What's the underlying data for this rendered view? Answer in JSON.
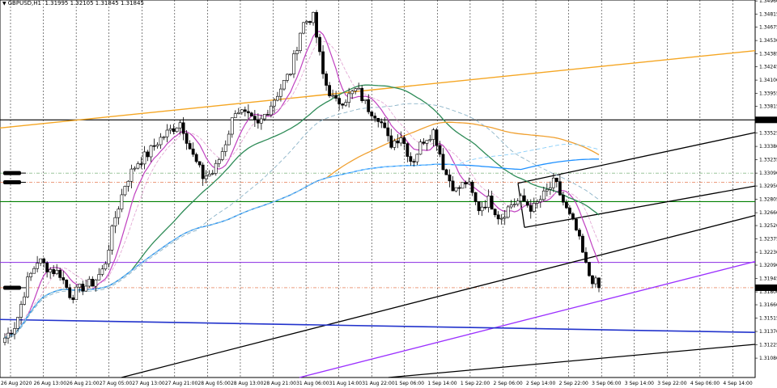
{
  "header": {
    "symbol": "GBPUSD,H1",
    "ohlc": "1.31995 1.32105 1.31845 1.31845"
  },
  "chart_data": {
    "type": "candlestick",
    "symbol": "GBPUSD",
    "timeframe": "H1",
    "ylim": [
      1.3087,
      1.3497
    ],
    "y_ticks": [
      "1.34960",
      "1.34815",
      "1.34675",
      "1.34530",
      "1.34385",
      "1.34245",
      "1.34100",
      "1.33955",
      "1.33815",
      "1.33668",
      "1.33525",
      "1.33380",
      "1.33235",
      "1.33090",
      "1.32950",
      "1.32805",
      "1.32660",
      "1.32520",
      "1.32375",
      "1.32230",
      "1.32090",
      "1.31945",
      "1.31800",
      "1.31660",
      "1.31515",
      "1.31370",
      "1.31225",
      "1.31080"
    ],
    "x_ticks": [
      "26 Aug 2020",
      "26 Aug 13:00",
      "26 Aug 21:00",
      "27 Aug 05:00",
      "27 Aug 13:00",
      "27 Aug 21:00",
      "28 Aug 05:00",
      "28 Aug 13:00",
      "28 Aug 21:00",
      "31 Aug 06:00",
      "31 Aug 14:00",
      "31 Aug 22:00",
      "1 Sep 06:00",
      "1 Sep 14:00",
      "1 Sep 22:00",
      "2 Sep 06:00",
      "2 Sep 14:00",
      "2 Sep 22:00",
      "3 Sep 06:00",
      "3 Sep 14:00",
      "3 Sep 22:00",
      "4 Sep 06:00",
      "4 Sep 14:00"
    ],
    "current_price": "1.31845",
    "marked_level": "1.33668",
    "close_anchors": [
      1.313,
      1.3145,
      1.319,
      1.3215,
      1.3205,
      1.32,
      1.3175,
      1.3185,
      1.319,
      1.3205,
      1.326,
      1.33,
      1.332,
      1.333,
      1.3345,
      1.3355,
      1.3365,
      1.333,
      1.3305,
      1.331,
      1.334,
      1.338,
      1.337,
      1.336,
      1.338,
      1.34,
      1.342,
      1.347,
      1.348,
      1.341,
      1.3385,
      1.339,
      1.34,
      1.338,
      1.337,
      1.334,
      1.335,
      1.332,
      1.3345,
      1.3355,
      1.331,
      1.329,
      1.33,
      1.327,
      1.328,
      1.326,
      1.3275,
      1.328,
      1.327,
      1.3285,
      1.33,
      1.327,
      1.3245,
      1.32,
      1.3185
    ]
  }
}
